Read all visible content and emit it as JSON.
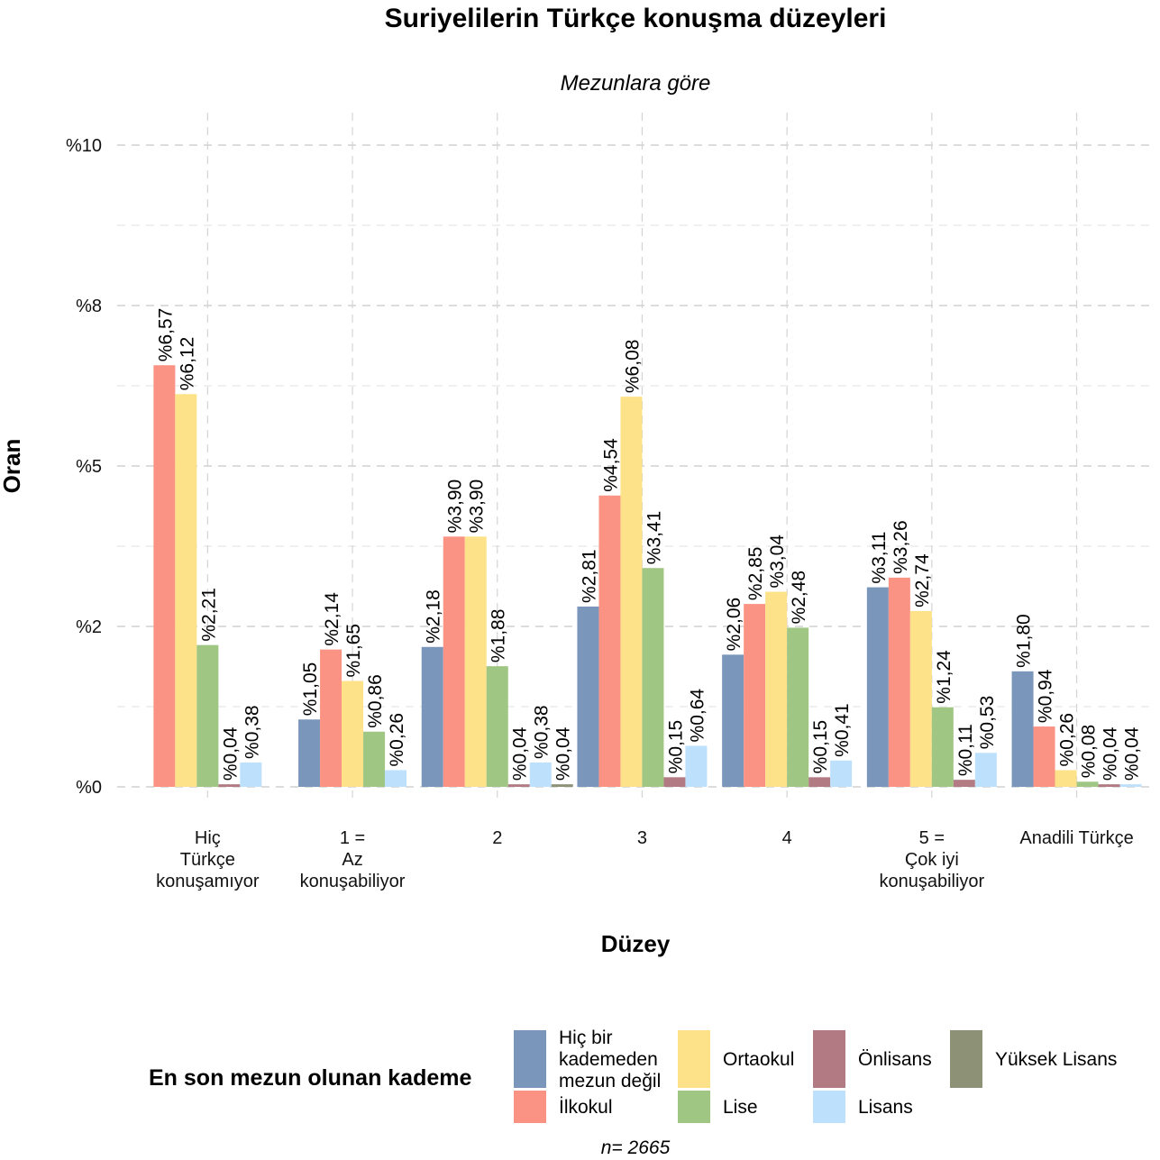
{
  "chart_data": {
    "type": "bar",
    "title": "Suriyelilerin Türkçe konuşma düzeyleri",
    "subtitle": "Mezunlara göre",
    "xlabel": "Düzey",
    "ylabel": "Oran",
    "ylim": [
      0,
      10
    ],
    "y_ticks": [
      {
        "value": 0,
        "label": "%0"
      },
      {
        "value": 2.5,
        "label": "%2"
      },
      {
        "value": 5,
        "label": "%5"
      },
      {
        "value": 7.5,
        "label": "%8"
      },
      {
        "value": 10,
        "label": "%10"
      }
    ],
    "grid": true,
    "legend_title": "En son mezun olunan kademe",
    "legend_position": "bottom",
    "categories": [
      [
        "Hiç",
        "Türkçe",
        "konuşamıyor"
      ],
      [
        "1 =",
        "Az",
        "konuşabiliyor"
      ],
      [
        "2"
      ],
      [
        "3"
      ],
      [
        "4"
      ],
      [
        "5 =",
        "Çok iyi",
        "konuşabiliyor"
      ],
      [
        "Anadili Türkçe"
      ]
    ],
    "series": [
      {
        "name": "Hiç bir kademeden mezun değil",
        "color": "#7b96bb",
        "values": [
          null,
          1.05,
          2.18,
          2.81,
          2.06,
          3.11,
          1.8
        ],
        "labels": [
          "",
          "%1,05",
          "%2,18",
          "%2,81",
          "%2,06",
          "%3,11",
          "%1,80"
        ]
      },
      {
        "name": "İlkokul",
        "color": "#fb9384",
        "values": [
          6.57,
          2.14,
          3.9,
          4.54,
          2.85,
          3.26,
          0.94
        ],
        "labels": [
          "%6,57",
          "%2,14",
          "%3,90",
          "%4,54",
          "%2,85",
          "%3,26",
          "%0,94"
        ]
      },
      {
        "name": "Ortaokul",
        "color": "#fde289",
        "values": [
          6.12,
          1.65,
          3.9,
          6.08,
          3.04,
          2.74,
          0.26
        ],
        "labels": [
          "%6,12",
          "%1,65",
          "%3,90",
          "%6,08",
          "%3,04",
          "%2,74",
          "%0,26"
        ]
      },
      {
        "name": "Lise",
        "color": "#a0c684",
        "values": [
          2.21,
          0.86,
          1.88,
          3.41,
          2.48,
          1.24,
          0.08
        ],
        "labels": [
          "%2,21",
          "%0,86",
          "%1,88",
          "%3,41",
          "%2,48",
          "%1,24",
          "%0,08"
        ]
      },
      {
        "name": "Önlisans",
        "color": "#b27b84",
        "values": [
          0.04,
          null,
          0.04,
          0.15,
          0.15,
          0.11,
          0.04
        ],
        "labels": [
          "%0,04",
          "",
          "%0,04",
          "%0,15",
          "%0,15",
          "%0,11",
          "%0,04"
        ]
      },
      {
        "name": "Lisans",
        "color": "#bde0fd",
        "values": [
          0.38,
          0.26,
          0.38,
          0.64,
          0.41,
          0.53,
          0.04
        ],
        "labels": [
          "%0,38",
          "%0,26",
          "%0,38",
          "%0,64",
          "%0,41",
          "%0,53",
          "%0,04"
        ]
      },
      {
        "name": "Yüksek Lisans",
        "color": "#8d9176",
        "values": [
          null,
          null,
          0.04,
          null,
          null,
          null,
          null
        ],
        "labels": [
          "",
          "",
          "%0,04",
          "",
          "",
          "",
          ""
        ]
      }
    ],
    "legend_items": [
      {
        "lines": [
          "Hiç bir",
          "kademeden",
          "mezun değil"
        ],
        "color": "#7b96bb"
      },
      {
        "lines": [
          "İlkokul"
        ],
        "color": "#fb9384"
      },
      {
        "lines": [
          "Ortaokul"
        ],
        "color": "#fde289"
      },
      {
        "lines": [
          "Lise"
        ],
        "color": "#a0c684"
      },
      {
        "lines": [
          "Önlisans"
        ],
        "color": "#b27b84"
      },
      {
        "lines": [
          "Lisans"
        ],
        "color": "#bde0fd"
      },
      {
        "lines": [
          "Yüksek Lisans"
        ],
        "color": "#8d9176"
      }
    ],
    "caption": "n=  2665"
  }
}
